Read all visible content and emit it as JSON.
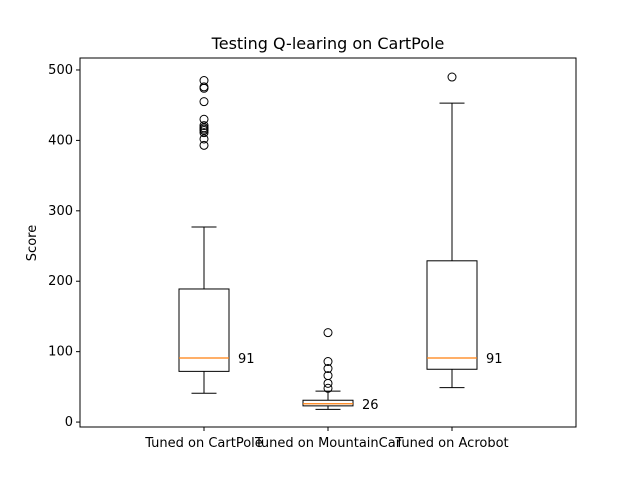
{
  "chart_data": {
    "type": "boxplot",
    "title": "Testing Q-learing on CartPole",
    "xlabel": "",
    "ylabel": "Score",
    "ylim": [
      -7,
      517
    ],
    "yticks": [
      0,
      100,
      200,
      300,
      400,
      500
    ],
    "grid": false,
    "colors": {
      "box": "#000000",
      "median": "#ff7f0e",
      "outlier": "#000000"
    },
    "categories": [
      "Tuned on CartPole",
      "Tuned on MountainCar",
      "Tuned on Acrobot"
    ],
    "boxes": [
      {
        "label": "Tuned on CartPole",
        "whisker_low": 41,
        "q1": 72,
        "median": 91,
        "q3": 189,
        "whisker_high": 277,
        "median_label": "91",
        "outliers": [
          393,
          402,
          411,
          414,
          416,
          418,
          421,
          430,
          455,
          474,
          476,
          485
        ]
      },
      {
        "label": "Tuned on MountainCar",
        "whisker_low": 18,
        "q1": 23,
        "median": 26,
        "q3": 31,
        "whisker_high": 44,
        "median_label": "26",
        "outliers": [
          48,
          55,
          66,
          76,
          86,
          127
        ]
      },
      {
        "label": "Tuned on Acrobot",
        "whisker_low": 49,
        "q1": 75,
        "median": 91,
        "q3": 229,
        "whisker_high": 453,
        "median_label": "91",
        "outliers": [
          490
        ]
      }
    ]
  }
}
